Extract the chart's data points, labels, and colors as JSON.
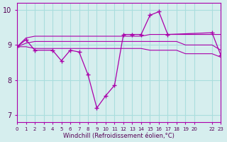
{
  "bg_color": "#d6eeee",
  "grid_color": "#aadddd",
  "line_color": "#aa00aa",
  "marker_color": "#aa00aa",
  "xlim": [
    0,
    23
  ],
  "ylim": [
    6.8,
    10.2
  ],
  "xtick_pos": [
    0,
    1,
    2,
    3,
    4,
    5,
    6,
    7,
    8,
    9,
    10,
    11,
    12,
    13,
    14,
    15,
    16,
    17,
    18,
    19,
    20,
    22,
    23
  ],
  "xtick_labels": [
    "0",
    "1",
    "2",
    "3",
    "4",
    "5",
    "6",
    "7",
    "8",
    "9",
    "10",
    "11",
    "12",
    "13",
    "14",
    "15",
    "16",
    "17",
    "18",
    "19",
    "20",
    "22",
    "23"
  ],
  "ytick_values": [
    7,
    8,
    9,
    10
  ],
  "xlabel": "Windchill (Refroidissement éolien,°C)",
  "line1_x": [
    0,
    1,
    2,
    3,
    4,
    5,
    6,
    7,
    8,
    9,
    10,
    11,
    12,
    13,
    14,
    15,
    16,
    17,
    18,
    19,
    20,
    22,
    23
  ],
  "line1_y": [
    8.95,
    9.2,
    9.25,
    9.25,
    9.25,
    9.25,
    9.25,
    9.25,
    9.25,
    9.25,
    9.25,
    9.25,
    9.25,
    9.25,
    9.25,
    9.3,
    9.3,
    9.3,
    9.3,
    9.3,
    9.3,
    9.3,
    9.3
  ],
  "line2_x": [
    0,
    1,
    2,
    3,
    4,
    5,
    6,
    7,
    8,
    9,
    10,
    11,
    12,
    13,
    14,
    15,
    16,
    17,
    18,
    19,
    20,
    22,
    23
  ],
  "line2_y": [
    8.95,
    9.05,
    9.1,
    9.1,
    9.1,
    9.1,
    9.1,
    9.1,
    9.1,
    9.1,
    9.1,
    9.1,
    9.1,
    9.1,
    9.1,
    9.1,
    9.1,
    9.1,
    9.1,
    9.0,
    9.0,
    9.0,
    8.85
  ],
  "line3_x": [
    0,
    1,
    2,
    3,
    4,
    5,
    6,
    7,
    8,
    9,
    10,
    11,
    12,
    13,
    14,
    15,
    16,
    17,
    18,
    19,
    20,
    22,
    23
  ],
  "line3_y": [
    8.95,
    8.95,
    8.9,
    8.9,
    8.9,
    8.9,
    8.9,
    8.9,
    8.9,
    8.9,
    8.9,
    8.9,
    8.9,
    8.9,
    8.9,
    8.85,
    8.85,
    8.85,
    8.85,
    8.75,
    8.75,
    8.75,
    8.65
  ],
  "line4_x": [
    0,
    1,
    2,
    4,
    5,
    6,
    7,
    8,
    9,
    10,
    11,
    12,
    13,
    14,
    15,
    16,
    17,
    22,
    23
  ],
  "line4_y": [
    8.95,
    9.15,
    8.85,
    8.85,
    8.55,
    8.85,
    8.8,
    8.15,
    7.2,
    7.55,
    7.85,
    9.3,
    9.3,
    9.3,
    9.85,
    9.95,
    9.3,
    9.35,
    8.7
  ]
}
